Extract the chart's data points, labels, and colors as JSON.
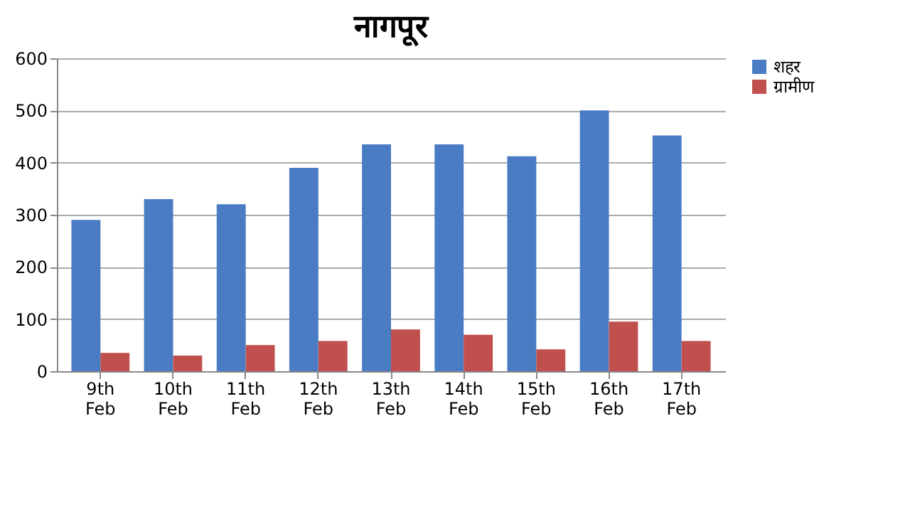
{
  "chart_data": {
    "type": "bar",
    "title": "नागपूर",
    "categories": [
      "9th Feb",
      "10th Feb",
      "11th Feb",
      "12th Feb",
      "13th Feb",
      "14th Feb",
      "15th Feb",
      "16th Feb",
      "17th Feb"
    ],
    "series": [
      {
        "name": "शहर",
        "color": "#4a7cc4",
        "values": [
          290,
          330,
          320,
          390,
          435,
          435,
          412,
          500,
          452
        ]
      },
      {
        "name": "ग्रामीण",
        "color": "#c0504d",
        "values": [
          35,
          30,
          50,
          58,
          80,
          70,
          42,
          95,
          58
        ]
      }
    ],
    "ylim": [
      0,
      600
    ],
    "yticks": [
      0,
      100,
      200,
      300,
      400,
      500,
      600
    ],
    "grid": "y",
    "legend": "right"
  }
}
